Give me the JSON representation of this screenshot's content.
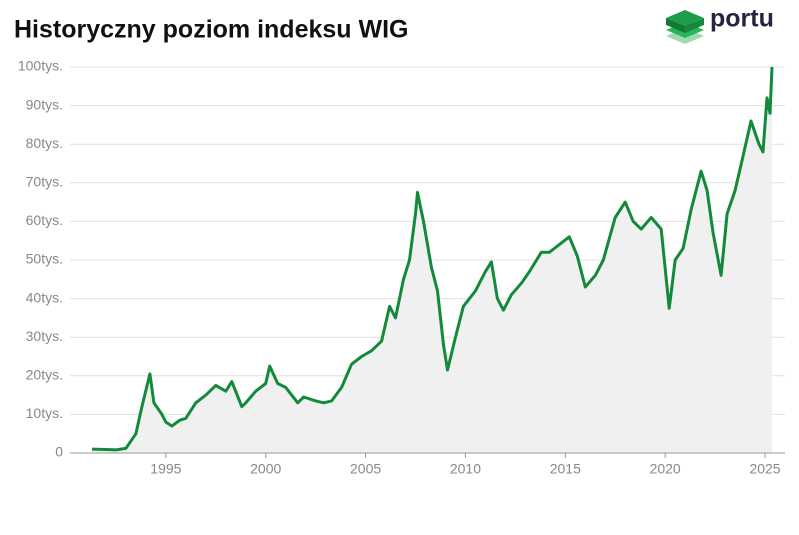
{
  "logo": "portu",
  "chart_data": {
    "type": "line",
    "title": "Historyczny poziom indeksu WIG",
    "x": [
      1991.3,
      1992.0,
      1992.5,
      1993.0,
      1993.5,
      1993.8,
      1994.2,
      1994.4,
      1994.8,
      1995.0,
      1995.3,
      1995.7,
      1996.0,
      1996.5,
      1997.0,
      1997.5,
      1998.0,
      1998.3,
      1998.8,
      1999.0,
      1999.5,
      2000.0,
      2000.2,
      2000.6,
      2001.0,
      2001.6,
      2001.9,
      2002.5,
      2002.9,
      2003.3,
      2003.8,
      2004.3,
      2004.8,
      2005.3,
      2005.8,
      2006.2,
      2006.5,
      2006.9,
      2007.2,
      2007.5,
      2007.6,
      2007.9,
      2008.3,
      2008.6,
      2008.9,
      2009.1,
      2009.5,
      2009.9,
      2010.5,
      2011.0,
      2011.3,
      2011.6,
      2011.9,
      2012.3,
      2012.8,
      2013.2,
      2013.8,
      2014.2,
      2014.7,
      2015.2,
      2015.6,
      2016.0,
      2016.5,
      2016.9,
      2017.5,
      2018.0,
      2018.4,
      2018.8,
      2019.3,
      2019.8,
      2020.2,
      2020.5,
      2020.9,
      2021.3,
      2021.8,
      2022.1,
      2022.4,
      2022.8,
      2023.1,
      2023.5,
      2023.9,
      2024.3,
      2024.7,
      2024.9,
      2025.1,
      2025.25,
      2025.35
    ],
    "series": [
      {
        "name": "WIG",
        "color": "#138a3a",
        "values": [
          1000,
          900,
          800,
          1200,
          5000,
          12000,
          20500,
          13000,
          10000,
          8000,
          7000,
          8500,
          9000,
          13000,
          15000,
          17500,
          16000,
          18500,
          12000,
          13000,
          16000,
          18000,
          22500,
          18000,
          17000,
          13000,
          14500,
          13500,
          13000,
          13500,
          17000,
          23000,
          25000,
          26500,
          29000,
          38000,
          35000,
          45000,
          50000,
          62000,
          67500,
          60000,
          48000,
          42000,
          28000,
          21500,
          30000,
          38000,
          42000,
          47000,
          49500,
          40000,
          37000,
          41000,
          44000,
          47000,
          52000,
          52000,
          54000,
          56000,
          51000,
          43000,
          46000,
          50000,
          61000,
          65000,
          60000,
          58000,
          61000,
          58000,
          37500,
          50000,
          53000,
          63000,
          73000,
          68000,
          57000,
          46000,
          62000,
          68000,
          77000,
          86000,
          80000,
          78000,
          92000,
          88000,
          100000
        ]
      }
    ],
    "area_color": "#f0f0f0",
    "xlim": [
      1990.2,
      2026
    ],
    "xticks": [
      1995,
      2000,
      2005,
      2010,
      2015,
      2020,
      2025
    ],
    "ylim": [
      0,
      100000
    ],
    "yticks": [
      0,
      {
        "value": 10000,
        "label": "10tys."
      },
      {
        "value": 20000,
        "label": "20tys."
      },
      {
        "value": 30000,
        "label": "30tys."
      },
      {
        "value": 40000,
        "label": "40tys."
      },
      {
        "value": 50000,
        "label": "50tys."
      },
      {
        "value": 60000,
        "label": "60tys."
      },
      {
        "value": 70000,
        "label": "70tys."
      },
      {
        "value": 80000,
        "label": "80tys."
      },
      {
        "value": 90000,
        "label": "90tys."
      },
      {
        "value": 100000,
        "label": "100tys."
      }
    ],
    "grid": true
  }
}
